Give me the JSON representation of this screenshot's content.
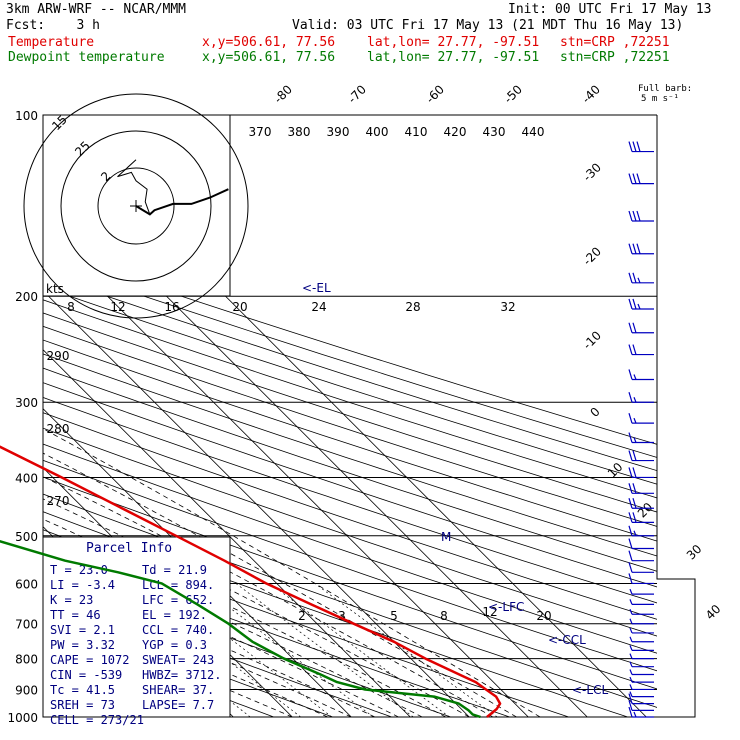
{
  "header": {
    "model": "3km ARW-WRF -- NCAR/MMM",
    "init": "Init: 00 UTC Fri 17 May 13",
    "fcst": "Fcst:    3 h",
    "valid": "Valid: 03 UTC Fri 17 May 13 (21 MDT Thu 16 May 13)",
    "temp_label": "Temperature",
    "dew_label": "Dewpoint temperature",
    "xy": "x,y=506.61, 77.56",
    "latlon": "lat,lon= 27.77, -97.51",
    "stn": "stn=CRP ,72251",
    "barb_note_1": "Full barb:",
    "barb_note_2": "5 m s⁻¹"
  },
  "colors": {
    "temperature": "#e00000",
    "dewpoint": "#007a00",
    "isobar": "#000000",
    "isotherm": "#000000",
    "dry_adiabat": "#000000",
    "moist_adiabat": "#000000",
    "mixing_ratio": "#000000",
    "labels": "#000080",
    "wind": "#0000c0"
  },
  "chart_data": {
    "type": "line",
    "xlabel": "",
    "ylabel": "",
    "pressure_levels": [
      100,
      200,
      300,
      400,
      500,
      600,
      700,
      800,
      900,
      1000
    ],
    "isotherm_labels": [
      -80,
      -70,
      -60,
      -50,
      -40,
      -30,
      -20,
      -10,
      0,
      10,
      20,
      30,
      40
    ],
    "theta_labels": [
      370,
      380,
      390,
      400,
      410,
      420,
      430,
      440
    ],
    "theta_small_labels": [
      290,
      280,
      270
    ],
    "mixing_ratio_labels": [
      "2",
      "3",
      "5",
      "8",
      "12",
      "20"
    ],
    "hodograph": {
      "units_label": "kts",
      "ring_labels": [
        "15",
        "25",
        "2"
      ],
      "speed_labels": [
        "8",
        "12",
        "16",
        "20",
        "24",
        "28",
        "32"
      ],
      "points": [
        [
          0,
          0
        ],
        [
          1.5,
          -2
        ],
        [
          2,
          -1
        ],
        [
          4,
          0.5
        ],
        [
          6,
          0.5
        ],
        [
          8,
          2
        ],
        [
          10,
          4
        ]
      ],
      "hook": [
        [
          1.5,
          -2
        ],
        [
          1,
          1
        ],
        [
          1.2,
          4
        ],
        [
          0,
          6
        ],
        [
          -0.5,
          8
        ],
        [
          -2,
          7
        ],
        [
          -1,
          9
        ],
        [
          0,
          11
        ]
      ]
    },
    "series": [
      {
        "name": "Temperature",
        "color": "#e00000",
        "points": [
          [
            1000,
            23.0
          ],
          [
            985,
            24.5
          ],
          [
            970,
            26.0
          ],
          [
            950,
            27.5
          ],
          [
            925,
            28.0
          ],
          [
            900,
            27.5
          ],
          [
            875,
            27.0
          ],
          [
            850,
            25.5
          ],
          [
            800,
            22.5
          ],
          [
            750,
            20.0
          ],
          [
            700,
            16.2
          ],
          [
            650,
            12.3
          ],
          [
            600,
            8.2
          ],
          [
            550,
            5.0
          ],
          [
            500,
            1.0
          ],
          [
            450,
            -3.5
          ],
          [
            400,
            -8.5
          ],
          [
            350,
            -14.5
          ],
          [
            300,
            -22.0
          ],
          [
            250,
            -31.5
          ],
          [
            225,
            -37.5
          ],
          [
            200,
            -44.5
          ],
          [
            190,
            -48.0
          ],
          [
            175,
            -52.5
          ],
          [
            150,
            -58.5
          ],
          [
            125,
            -64.0
          ],
          [
            115,
            -66.0
          ],
          [
            100,
            -67.5
          ]
        ]
      },
      {
        "name": "Dewpoint temperature",
        "color": "#007a00",
        "points": [
          [
            1000,
            21.9
          ],
          [
            990,
            21.0
          ],
          [
            975,
            21.0
          ],
          [
            950,
            20.5
          ],
          [
            925,
            17.5
          ],
          [
            900,
            7.0
          ],
          [
            875,
            3.5
          ],
          [
            850,
            2.0
          ],
          [
            800,
            -1.5
          ],
          [
            750,
            -4.0
          ],
          [
            700,
            -5.0
          ],
          [
            650,
            -7.0
          ],
          [
            600,
            -9.5
          ],
          [
            575,
            -15.0
          ],
          [
            550,
            -22.0
          ],
          [
            500,
            -32.0
          ],
          [
            475,
            -38.0
          ],
          [
            450,
            -37.0
          ],
          [
            400,
            -37.0
          ],
          [
            375,
            -39.0
          ],
          [
            350,
            -39.0
          ],
          [
            325,
            -37.0
          ],
          [
            300,
            -34.0
          ],
          [
            275,
            -42.0
          ],
          [
            250,
            -52.0
          ],
          [
            225,
            -55.0
          ],
          [
            200,
            -59.0
          ],
          [
            175,
            -63.0
          ],
          [
            150,
            -67.0
          ],
          [
            125,
            -69.0
          ],
          [
            100,
            -73.0
          ]
        ]
      }
    ],
    "levels_marked": [
      {
        "label": "<-EL",
        "p": 192
      },
      {
        "label": "<-LFC",
        "p": 652
      },
      {
        "label": "<-CCL",
        "p": 740
      },
      {
        "label": "<-LCL",
        "p": 894
      },
      {
        "label": "M",
        "p": 500
      }
    ]
  },
  "parcel_info": {
    "title": "Parcel Info",
    "rows": [
      [
        "T  =   23.0",
        "Td =  21.9"
      ],
      [
        "LI =   -3.4",
        "LCL =  894."
      ],
      [
        "K  =     23",
        "LFC =  652."
      ],
      [
        "TT =     46",
        "EL  =  192."
      ],
      [
        "SVI =   2.1",
        "CCL =  740."
      ],
      [
        "PW =   3.32",
        "YGP =   0.3"
      ],
      [
        "CAPE =  1072",
        "SWEAT=  243"
      ],
      [
        "CIN =  -539",
        "HWBZ= 3712."
      ],
      [
        "Tc =   41.5",
        "SHEAR=  37."
      ],
      [
        "SREH =    73",
        "LAPSE=  7.7"
      ],
      [
        "CELL = 273/21",
        ""
      ]
    ]
  },
  "wind_barbs": {
    "pressures": [
      115,
      130,
      150,
      170,
      190,
      210,
      230,
      250,
      275,
      300,
      325,
      350,
      375,
      400,
      425,
      450,
      475,
      500,
      525,
      550,
      575,
      600,
      625,
      650,
      675,
      700,
      725,
      750,
      775,
      800,
      825,
      850,
      875,
      900,
      925,
      950,
      975,
      1000
    ],
    "speeds": [
      30,
      30,
      30,
      30,
      25,
      25,
      20,
      20,
      15,
      15,
      15,
      15,
      20,
      20,
      20,
      20,
      20,
      15,
      10,
      10,
      10,
      10,
      5,
      5,
      5,
      5,
      5,
      5,
      5,
      5,
      5,
      5,
      5,
      5,
      5,
      10,
      10,
      15
    ]
  }
}
